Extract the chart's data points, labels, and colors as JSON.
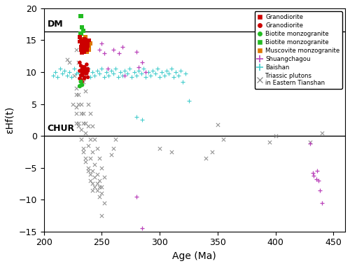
{
  "xlim": [
    200,
    460
  ],
  "ylim": [
    -15,
    20
  ],
  "xlabel": "Age (Ma)",
  "ylabel": "εHf(t)",
  "dm_y": 16.4,
  "chur_y": 0.0,
  "dm_label": "DM",
  "chur_label": "CHUR",
  "granodiorite_sq_color": "#cc0000",
  "granodiorite_sq": [
    [
      231,
      14.8
    ],
    [
      232,
      15.0
    ],
    [
      233,
      14.5
    ],
    [
      234,
      14.2
    ],
    [
      235,
      15.2
    ],
    [
      236,
      13.8
    ],
    [
      237,
      14.6
    ],
    [
      238,
      15.0
    ],
    [
      232,
      13.5
    ],
    [
      233,
      14.0
    ],
    [
      234,
      14.8
    ],
    [
      235,
      13.2
    ],
    [
      236,
      14.3
    ],
    [
      237,
      13.8
    ],
    [
      238,
      14.5
    ],
    [
      231,
      15.5
    ],
    [
      233,
      13.0
    ],
    [
      235,
      14.0
    ],
    [
      236,
      15.1
    ],
    [
      237,
      13.5
    ],
    [
      238,
      14.2
    ],
    [
      239,
      15.0
    ],
    [
      232,
      14.0
    ],
    [
      234,
      13.8
    ],
    [
      236,
      14.8
    ]
  ],
  "granodiorite_ci_color": "#cc0000",
  "granodiorite_ci": [
    [
      231,
      10.2
    ],
    [
      232,
      11.0
    ],
    [
      233,
      10.5
    ],
    [
      234,
      9.8
    ],
    [
      235,
      10.8
    ],
    [
      236,
      10.0
    ],
    [
      237,
      11.2
    ],
    [
      238,
      10.5
    ],
    [
      231,
      9.0
    ],
    [
      232,
      9.5
    ],
    [
      233,
      10.0
    ],
    [
      234,
      10.8
    ],
    [
      235,
      9.2
    ],
    [
      236,
      10.5
    ],
    [
      237,
      9.8
    ],
    [
      238,
      10.2
    ],
    [
      232,
      8.8
    ],
    [
      233,
      9.5
    ],
    [
      234,
      10.2
    ],
    [
      235,
      9.0
    ],
    [
      236,
      9.8
    ],
    [
      237,
      10.5
    ],
    [
      238,
      9.2
    ],
    [
      231,
      11.5
    ],
    [
      233,
      8.5
    ]
  ],
  "biotite_monzo_ci_color": "#22bb22",
  "biotite_monzo_ci": [
    [
      231,
      7.8
    ],
    [
      232,
      8.5
    ],
    [
      233,
      8.0
    ]
  ],
  "biotite_monzo_sq_color": "#22bb22",
  "biotite_monzo_sq": [
    [
      232,
      18.8
    ],
    [
      233,
      17.0
    ],
    [
      234,
      16.5
    ],
    [
      232,
      16.0
    ]
  ],
  "muscovite_monzo_sq_color": "#dd7700",
  "muscovite_monzo_sq": [
    [
      232,
      15.0
    ],
    [
      233,
      14.5
    ],
    [
      234,
      15.2
    ],
    [
      235,
      14.8
    ],
    [
      236,
      13.8
    ],
    [
      237,
      14.5
    ],
    [
      238,
      13.8
    ],
    [
      239,
      14.2
    ],
    [
      232,
      13.5
    ],
    [
      233,
      14.0
    ],
    [
      234,
      13.8
    ],
    [
      235,
      15.0
    ],
    [
      236,
      14.5
    ],
    [
      237,
      13.2
    ],
    [
      238,
      14.0
    ],
    [
      239,
      13.5
    ],
    [
      234,
      14.8
    ],
    [
      236,
      15.5
    ],
    [
      238,
      15.0
    ],
    [
      240,
      14.5
    ]
  ],
  "shuangchagou_color": "#bb44bb",
  "shuangchagou": [
    [
      248,
      13.5
    ],
    [
      250,
      14.5
    ],
    [
      252,
      13.0
    ],
    [
      255,
      10.5
    ],
    [
      260,
      13.5
    ],
    [
      265,
      13.0
    ],
    [
      268,
      14.0
    ],
    [
      270,
      9.5
    ],
    [
      280,
      13.2
    ],
    [
      282,
      10.8
    ],
    [
      285,
      11.5
    ],
    [
      288,
      10.0
    ],
    [
      280,
      -9.5
    ],
    [
      285,
      -14.5
    ],
    [
      430,
      -1.2
    ],
    [
      432,
      -5.8
    ],
    [
      433,
      -6.2
    ],
    [
      435,
      -6.8
    ],
    [
      436,
      -5.5
    ],
    [
      437,
      -7.0
    ],
    [
      438,
      -8.5
    ],
    [
      440,
      -10.5
    ]
  ],
  "baishan_color": "#44cccc",
  "baishan": [
    [
      208,
      9.5
    ],
    [
      210,
      10.0
    ],
    [
      212,
      9.2
    ],
    [
      214,
      10.5
    ],
    [
      216,
      9.8
    ],
    [
      218,
      10.2
    ],
    [
      220,
      9.5
    ],
    [
      222,
      10.0
    ],
    [
      224,
      9.2
    ],
    [
      226,
      10.5
    ],
    [
      228,
      9.8
    ],
    [
      230,
      10.0
    ],
    [
      232,
      9.5
    ],
    [
      234,
      10.2
    ],
    [
      236,
      9.8
    ],
    [
      238,
      10.5
    ],
    [
      240,
      9.2
    ],
    [
      242,
      10.0
    ],
    [
      244,
      9.5
    ],
    [
      246,
      10.2
    ],
    [
      248,
      9.8
    ],
    [
      250,
      10.5
    ],
    [
      252,
      9.2
    ],
    [
      254,
      10.0
    ],
    [
      256,
      9.5
    ],
    [
      258,
      10.2
    ],
    [
      260,
      9.8
    ],
    [
      262,
      10.5
    ],
    [
      264,
      9.2
    ],
    [
      266,
      10.0
    ],
    [
      268,
      9.5
    ],
    [
      270,
      10.2
    ],
    [
      272,
      9.8
    ],
    [
      274,
      10.5
    ],
    [
      276,
      9.2
    ],
    [
      278,
      10.0
    ],
    [
      280,
      9.5
    ],
    [
      282,
      10.2
    ],
    [
      284,
      9.8
    ],
    [
      286,
      10.5
    ],
    [
      288,
      9.2
    ],
    [
      290,
      10.0
    ],
    [
      292,
      9.5
    ],
    [
      294,
      10.2
    ],
    [
      296,
      9.8
    ],
    [
      298,
      10.5
    ],
    [
      300,
      9.2
    ],
    [
      302,
      10.0
    ],
    [
      304,
      9.5
    ],
    [
      306,
      10.2
    ],
    [
      308,
      9.8
    ],
    [
      310,
      10.5
    ],
    [
      312,
      9.2
    ],
    [
      314,
      10.0
    ],
    [
      316,
      9.5
    ],
    [
      318,
      10.2
    ],
    [
      320,
      8.5
    ],
    [
      322,
      9.8
    ],
    [
      280,
      3.0
    ],
    [
      285,
      2.5
    ],
    [
      325,
      5.5
    ]
  ],
  "triassic_color": "#888888",
  "triassic": [
    [
      220,
      12.0
    ],
    [
      222,
      11.5
    ],
    [
      225,
      5.0
    ],
    [
      226,
      9.5
    ],
    [
      228,
      13.5
    ],
    [
      228,
      7.5
    ],
    [
      228,
      6.5
    ],
    [
      228,
      4.5
    ],
    [
      228,
      3.5
    ],
    [
      228,
      2.0
    ],
    [
      230,
      11.5
    ],
    [
      230,
      6.5
    ],
    [
      230,
      5.0
    ],
    [
      230,
      2.0
    ],
    [
      230,
      1.5
    ],
    [
      232,
      10.0
    ],
    [
      232,
      5.0
    ],
    [
      232,
      3.5
    ],
    [
      232,
      1.0
    ],
    [
      232,
      -0.5
    ],
    [
      234,
      8.5
    ],
    [
      234,
      3.5
    ],
    [
      234,
      2.0
    ],
    [
      234,
      -2.0
    ],
    [
      234,
      -2.5
    ],
    [
      236,
      7.0
    ],
    [
      236,
      2.0
    ],
    [
      236,
      0.5
    ],
    [
      236,
      -3.5
    ],
    [
      236,
      -4.0
    ],
    [
      238,
      5.0
    ],
    [
      238,
      1.5
    ],
    [
      238,
      -1.5
    ],
    [
      238,
      -5.0
    ],
    [
      238,
      -5.5
    ],
    [
      240,
      3.5
    ],
    [
      240,
      -0.5
    ],
    [
      240,
      -3.5
    ],
    [
      240,
      -6.0
    ],
    [
      240,
      -7.0
    ],
    [
      242,
      1.5
    ],
    [
      242,
      -2.5
    ],
    [
      242,
      -5.5
    ],
    [
      242,
      -7.5
    ],
    [
      242,
      -8.5
    ],
    [
      244,
      -0.5
    ],
    [
      244,
      -4.5
    ],
    [
      244,
      -6.5
    ],
    [
      244,
      -8.0
    ],
    [
      246,
      -2.0
    ],
    [
      246,
      -6.0
    ],
    [
      246,
      -7.5
    ],
    [
      246,
      -8.5
    ],
    [
      248,
      -3.5
    ],
    [
      248,
      -7.0
    ],
    [
      248,
      -8.0
    ],
    [
      248,
      -9.5
    ],
    [
      250,
      -5.0
    ],
    [
      250,
      -8.0
    ],
    [
      250,
      -9.0
    ],
    [
      250,
      -12.5
    ],
    [
      252,
      -6.5
    ],
    [
      252,
      -10.5
    ],
    [
      258,
      -3.0
    ],
    [
      260,
      -2.0
    ],
    [
      262,
      -0.5
    ],
    [
      300,
      -2.0
    ],
    [
      310,
      -2.5
    ],
    [
      340,
      -3.5
    ],
    [
      345,
      -2.5
    ],
    [
      350,
      1.8
    ],
    [
      355,
      -0.5
    ],
    [
      395,
      -1.0
    ],
    [
      400,
      0.0
    ],
    [
      430,
      -1.0
    ],
    [
      440,
      0.5
    ]
  ]
}
